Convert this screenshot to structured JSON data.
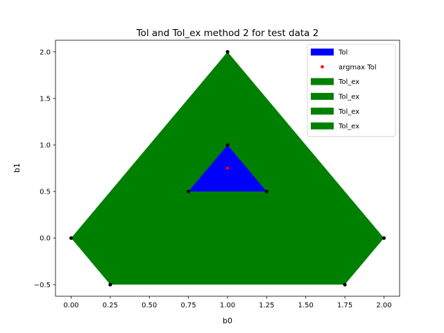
{
  "chart_data": {
    "type": "area",
    "title": "Tol and Tol_ex method 2 for test data 2",
    "xlabel": "b0",
    "ylabel": "b1",
    "xlim": [
      -0.1,
      2.1
    ],
    "ylim": [
      -0.625,
      2.125
    ],
    "xticks": [
      0.0,
      0.25,
      0.5,
      0.75,
      1.0,
      1.25,
      1.5,
      1.75,
      2.0
    ],
    "xtick_labels": [
      "0.00",
      "0.25",
      "0.50",
      "0.75",
      "1.00",
      "1.25",
      "1.50",
      "1.75",
      "2.00"
    ],
    "yticks": [
      -0.5,
      0.0,
      0.5,
      1.0,
      1.5,
      2.0
    ],
    "ytick_labels": [
      "−0.5",
      "0.0",
      "0.5",
      "1.0",
      "1.5",
      "2.0"
    ],
    "grid": false,
    "legend_position": "top-right",
    "polygons": [
      {
        "name": "Tol_ex",
        "color": "#008000",
        "vertices": [
          [
            1.0,
            2.0
          ],
          [
            2.0,
            0.0
          ],
          [
            1.75,
            -0.5
          ],
          [
            0.25,
            -0.5
          ],
          [
            0.0,
            0.0
          ]
        ]
      },
      {
        "name": "Tol",
        "color": "#0000ff",
        "vertices": [
          [
            1.0,
            1.0
          ],
          [
            1.25,
            0.5
          ],
          [
            0.75,
            0.5
          ]
        ]
      }
    ],
    "vertex_points": [
      [
        1.0,
        2.0
      ],
      [
        2.0,
        0.0
      ],
      [
        1.75,
        -0.5
      ],
      [
        0.25,
        -0.5
      ],
      [
        0.0,
        0.0
      ],
      [
        1.0,
        1.0
      ],
      [
        1.25,
        0.5
      ],
      [
        0.75,
        0.5
      ]
    ],
    "argmax_point": {
      "name": "argmax Tol",
      "x": 1.0,
      "y": 0.75,
      "color": "#ff0000"
    },
    "legend": [
      {
        "label": "Tol",
        "kind": "patch",
        "color": "#0000ff"
      },
      {
        "label": "argmax Tol",
        "kind": "marker",
        "color": "#ff0000"
      },
      {
        "label": "Tol_ex",
        "kind": "patch",
        "color": "#008000"
      },
      {
        "label": "Tol_ex",
        "kind": "patch",
        "color": "#008000"
      },
      {
        "label": "Tol_ex",
        "kind": "patch",
        "color": "#008000"
      },
      {
        "label": "Tol_ex",
        "kind": "patch",
        "color": "#008000"
      }
    ]
  }
}
